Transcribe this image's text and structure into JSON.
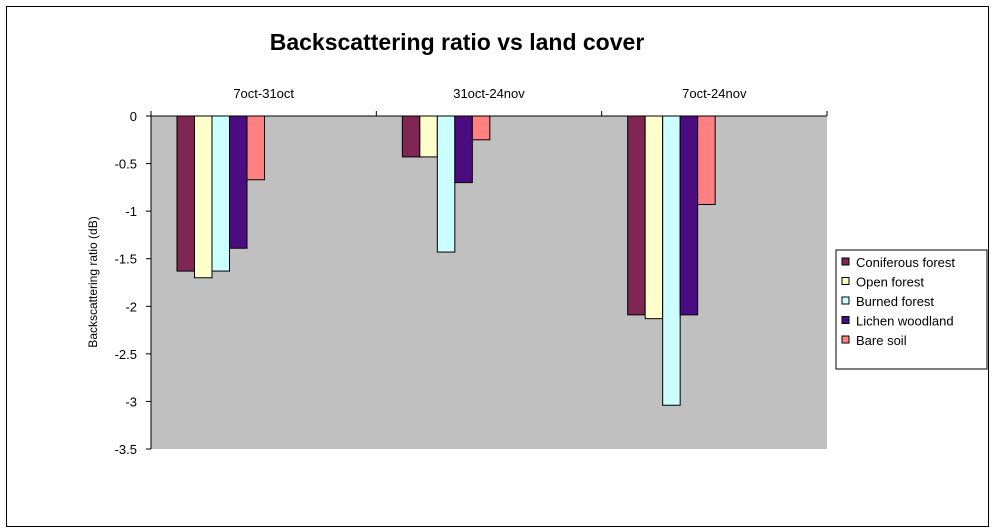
{
  "chart_data": {
    "type": "bar",
    "title": "Backscattering ratio vs land cover",
    "xlabel": "",
    "ylabel": "Backscattering ratio (dB)",
    "categories": [
      "7oct-31oct",
      "31oct-24nov",
      "7oct-24nov"
    ],
    "ylim": [
      -3.5,
      0
    ],
    "yticks": [
      0,
      -0.5,
      -1,
      -1.5,
      -2,
      -2.5,
      -3,
      -3.5
    ],
    "ytick_labels": [
      "0",
      "-0.5",
      "-1",
      "-1.5",
      "-2",
      "-2.5",
      "-3",
      "-3.5"
    ],
    "x_axis_position": "top",
    "grid": false,
    "plot_background": "#c0c0c0",
    "legend_position": "right",
    "series": [
      {
        "name": "Coniferous forest",
        "color": "#7f2652",
        "values": [
          -1.63,
          -0.43,
          -2.09
        ]
      },
      {
        "name": "Open forest",
        "color": "#ffffcc",
        "values": [
          -1.7,
          -0.43,
          -2.13
        ]
      },
      {
        "name": "Burned forest",
        "color": "#ccffff",
        "values": [
          -1.63,
          -1.43,
          -3.04
        ]
      },
      {
        "name": "Lichen woodland",
        "color": "#4b0c82",
        "values": [
          -1.39,
          -0.7,
          -2.09
        ]
      },
      {
        "name": "Bare soil",
        "color": "#ff8080",
        "values": [
          -0.67,
          -0.25,
          -0.93
        ]
      }
    ]
  }
}
